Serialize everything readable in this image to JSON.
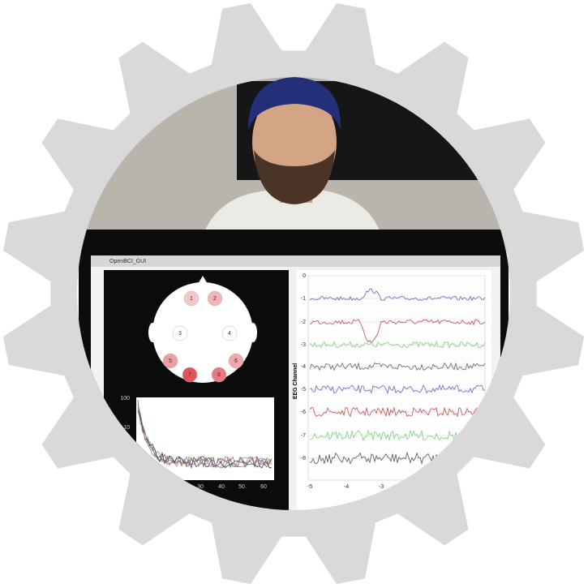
{
  "window": {
    "title": "OpenBCI_GUI"
  },
  "head_plot": {
    "electrodes": [
      "1",
      "2",
      "3",
      "4",
      "5",
      "6",
      "7",
      "8"
    ]
  },
  "spectrum": {
    "yticks": [
      "100",
      "10",
      "1"
    ],
    "xticks": [
      "30",
      "40",
      "50",
      "60"
    ]
  },
  "eeg": {
    "y_label": "EEG Channel",
    "channels": [
      "0",
      "-1",
      "-2",
      "-3",
      "-4",
      "-5",
      "-6",
      "-7",
      "-8"
    ],
    "xticks": [
      "-5",
      "-4",
      "-3"
    ]
  }
}
